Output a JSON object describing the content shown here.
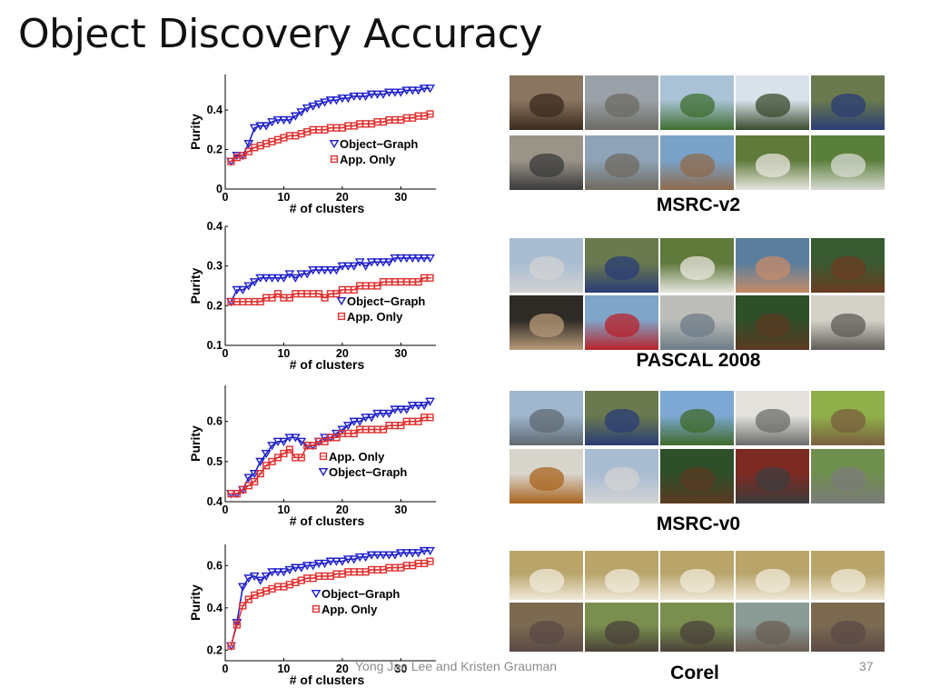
{
  "slide": {
    "title": "Object Discovery Accuracy",
    "footer_author": "Yong Jae Lee and Kristen Grauman",
    "page_number": "37"
  },
  "datasets": [
    {
      "label": "MSRC-v2",
      "photos": [
        "dog",
        "street",
        "house-lawn",
        "tree",
        "car",
        "bicycles",
        "harbor-town",
        "boat",
        "sheep",
        "cottage"
      ]
    },
    {
      "label": "PASCAL 2008",
      "photos": [
        "airplane",
        "car",
        "sheep",
        "people-dining",
        "horse-rider",
        "people-dinner",
        "bus",
        "train-station",
        "horse",
        "train"
      ]
    },
    {
      "label": "MSRC-v0",
      "photos": [
        "building",
        "car",
        "trees",
        "window",
        "cow",
        "bench",
        "airplane",
        "horse",
        "bicycle",
        "road"
      ]
    },
    {
      "label": "Corel",
      "photos": [
        "polar-bear",
        "polar-bear",
        "polar-bear",
        "polar-bear",
        "polar-bear",
        "hippo",
        "rhino",
        "rhino",
        "hippos",
        "hippo"
      ]
    }
  ],
  "colors": {
    "object_graph": "#1f1fcc",
    "app_only": "#e03030"
  },
  "chart_data": [
    {
      "type": "line",
      "xlabel": "# of clusters",
      "ylabel": "Purity",
      "xlim": [
        0,
        36
      ],
      "ylim": [
        0,
        0.58
      ],
      "xticks": [
        0,
        10,
        20,
        30
      ],
      "yticks": [
        0,
        0.2,
        0.4
      ],
      "xtick_labels": [
        "0",
        "10",
        "20",
        "30"
      ],
      "ytick_labels": [
        "0",
        "0.2",
        "0.4"
      ],
      "legend_position": "lower-right",
      "legend_order": [
        "Object−Graph",
        "App. Only"
      ],
      "x": [
        1,
        2,
        3,
        4,
        5,
        6,
        7,
        8,
        9,
        10,
        11,
        12,
        13,
        14,
        15,
        16,
        17,
        18,
        19,
        20,
        21,
        22,
        23,
        24,
        25,
        26,
        27,
        28,
        29,
        30,
        31,
        32,
        33,
        34,
        35
      ],
      "series": [
        {
          "name": "Object−Graph",
          "marker": "triangle-down",
          "color": "#1f1fcc",
          "values": [
            0.14,
            0.17,
            0.17,
            0.23,
            0.31,
            0.32,
            0.32,
            0.34,
            0.35,
            0.35,
            0.35,
            0.37,
            0.39,
            0.41,
            0.42,
            0.43,
            0.44,
            0.45,
            0.45,
            0.46,
            0.46,
            0.47,
            0.47,
            0.47,
            0.48,
            0.48,
            0.48,
            0.49,
            0.49,
            0.49,
            0.5,
            0.5,
            0.5,
            0.51,
            0.51
          ]
        },
        {
          "name": "App. Only",
          "marker": "square",
          "color": "#e03030",
          "values": [
            0.14,
            0.16,
            0.17,
            0.19,
            0.21,
            0.22,
            0.23,
            0.24,
            0.25,
            0.26,
            0.27,
            0.27,
            0.28,
            0.29,
            0.3,
            0.3,
            0.3,
            0.31,
            0.31,
            0.31,
            0.32,
            0.32,
            0.33,
            0.33,
            0.33,
            0.34,
            0.34,
            0.35,
            0.35,
            0.35,
            0.36,
            0.36,
            0.37,
            0.37,
            0.38
          ]
        }
      ]
    },
    {
      "type": "line",
      "xlabel": "# of clusters",
      "ylabel": "Purity",
      "xlim": [
        0,
        36
      ],
      "ylim": [
        0.1,
        0.4
      ],
      "xticks": [
        0,
        10,
        20,
        30
      ],
      "yticks": [
        0.1,
        0.2,
        0.3,
        0.4
      ],
      "xtick_labels": [
        "0",
        "10",
        "20",
        "30"
      ],
      "ytick_labels": [
        "0.1",
        "0.2",
        "0.3",
        "0.4"
      ],
      "legend_position": "lower-right",
      "legend_order": [
        "Object−Graph",
        "App. Only"
      ],
      "x": [
        1,
        2,
        3,
        4,
        5,
        6,
        7,
        8,
        9,
        10,
        11,
        12,
        13,
        14,
        15,
        16,
        17,
        18,
        19,
        20,
        21,
        22,
        23,
        24,
        25,
        26,
        27,
        28,
        29,
        30,
        31,
        32,
        33,
        34,
        35
      ],
      "series": [
        {
          "name": "Object−Graph",
          "marker": "triangle-down",
          "color": "#1f1fcc",
          "values": [
            0.21,
            0.24,
            0.24,
            0.25,
            0.26,
            0.27,
            0.27,
            0.27,
            0.27,
            0.27,
            0.28,
            0.27,
            0.28,
            0.28,
            0.29,
            0.29,
            0.29,
            0.29,
            0.29,
            0.3,
            0.3,
            0.3,
            0.31,
            0.3,
            0.31,
            0.31,
            0.31,
            0.31,
            0.32,
            0.32,
            0.32,
            0.32,
            0.32,
            0.32,
            0.32
          ]
        },
        {
          "name": "App. Only",
          "marker": "square",
          "color": "#e03030",
          "values": [
            0.21,
            0.21,
            0.21,
            0.21,
            0.21,
            0.21,
            0.22,
            0.22,
            0.23,
            0.22,
            0.22,
            0.23,
            0.23,
            0.23,
            0.23,
            0.23,
            0.22,
            0.23,
            0.23,
            0.24,
            0.24,
            0.24,
            0.25,
            0.25,
            0.25,
            0.25,
            0.26,
            0.26,
            0.26,
            0.26,
            0.26,
            0.26,
            0.26,
            0.27,
            0.27
          ]
        }
      ]
    },
    {
      "type": "line",
      "xlabel": "# of clusters",
      "ylabel": "Purity",
      "xlim": [
        0,
        36
      ],
      "ylim": [
        0.4,
        0.69
      ],
      "xticks": [
        0,
        10,
        20,
        30
      ],
      "yticks": [
        0.4,
        0.5,
        0.6
      ],
      "xtick_labels": [
        "0",
        "10",
        "20",
        "30"
      ],
      "ytick_labels": [
        "0.4",
        "0.5",
        "0.6"
      ],
      "legend_position": "lower-right",
      "legend_order": [
        "App. Only",
        "Object−Graph"
      ],
      "x": [
        1,
        2,
        3,
        4,
        5,
        6,
        7,
        8,
        9,
        10,
        11,
        12,
        13,
        14,
        15,
        16,
        17,
        18,
        19,
        20,
        21,
        22,
        23,
        24,
        25,
        26,
        27,
        28,
        29,
        30,
        31,
        32,
        33,
        34,
        35
      ],
      "series": [
        {
          "name": "Object−Graph",
          "marker": "triangle-down",
          "color": "#1f1fcc",
          "values": [
            0.42,
            0.42,
            0.43,
            0.46,
            0.47,
            0.5,
            0.52,
            0.54,
            0.55,
            0.55,
            0.56,
            0.56,
            0.55,
            0.54,
            0.54,
            0.55,
            0.56,
            0.56,
            0.57,
            0.58,
            0.59,
            0.6,
            0.6,
            0.61,
            0.61,
            0.62,
            0.62,
            0.62,
            0.63,
            0.63,
            0.63,
            0.64,
            0.64,
            0.64,
            0.65
          ]
        },
        {
          "name": "App. Only",
          "marker": "square",
          "color": "#e03030",
          "values": [
            0.42,
            0.42,
            0.43,
            0.44,
            0.45,
            0.47,
            0.49,
            0.5,
            0.51,
            0.52,
            0.53,
            0.51,
            0.51,
            0.54,
            0.54,
            0.55,
            0.55,
            0.56,
            0.56,
            0.57,
            0.57,
            0.57,
            0.58,
            0.58,
            0.58,
            0.58,
            0.58,
            0.59,
            0.59,
            0.59,
            0.6,
            0.6,
            0.6,
            0.61,
            0.61
          ]
        }
      ]
    },
    {
      "type": "line",
      "xlabel": "# of clusters",
      "ylabel": "Purity",
      "xlim": [
        0,
        36
      ],
      "ylim": [
        0.15,
        0.7
      ],
      "xticks": [
        0,
        10,
        20,
        30
      ],
      "yticks": [
        0.2,
        0.4,
        0.6
      ],
      "xtick_labels": [
        "0",
        "10",
        "20",
        "30"
      ],
      "ytick_labels": [
        "0.2",
        "0.4",
        "0.6"
      ],
      "legend_position": "lower-right",
      "legend_order": [
        "Object−Graph",
        "App. Only"
      ],
      "x": [
        1,
        2,
        3,
        4,
        5,
        6,
        7,
        8,
        9,
        10,
        11,
        12,
        13,
        14,
        15,
        16,
        17,
        18,
        19,
        20,
        21,
        22,
        23,
        24,
        25,
        26,
        27,
        28,
        29,
        30,
        31,
        32,
        33,
        34,
        35
      ],
      "series": [
        {
          "name": "Object−Graph",
          "marker": "triangle-down",
          "color": "#1f1fcc",
          "values": [
            0.22,
            0.33,
            0.5,
            0.54,
            0.55,
            0.53,
            0.55,
            0.57,
            0.57,
            0.57,
            0.58,
            0.59,
            0.59,
            0.6,
            0.6,
            0.61,
            0.61,
            0.62,
            0.62,
            0.62,
            0.63,
            0.63,
            0.64,
            0.64,
            0.65,
            0.65,
            0.65,
            0.65,
            0.65,
            0.66,
            0.66,
            0.66,
            0.66,
            0.67,
            0.67
          ]
        },
        {
          "name": "App. Only",
          "marker": "square",
          "color": "#e03030",
          "values": [
            0.22,
            0.32,
            0.41,
            0.44,
            0.46,
            0.47,
            0.48,
            0.49,
            0.5,
            0.5,
            0.51,
            0.52,
            0.53,
            0.54,
            0.54,
            0.55,
            0.55,
            0.55,
            0.56,
            0.56,
            0.57,
            0.57,
            0.57,
            0.57,
            0.58,
            0.58,
            0.58,
            0.59,
            0.59,
            0.59,
            0.6,
            0.6,
            0.61,
            0.61,
            0.62
          ]
        }
      ]
    }
  ]
}
